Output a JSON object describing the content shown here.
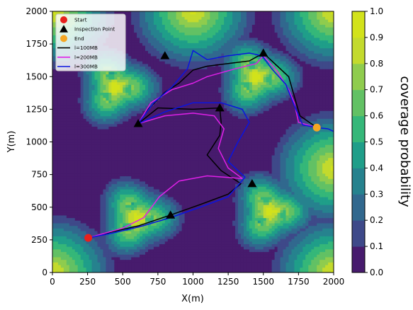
{
  "chart_data": {
    "type": "line",
    "xlabel": "X(m)",
    "ylabel": "Y(m)",
    "xlim": [
      0,
      2000
    ],
    "ylim": [
      0,
      2000
    ],
    "xticks": [
      0,
      250,
      500,
      750,
      1000,
      1250,
      1500,
      1750,
      2000
    ],
    "yticks": [
      0,
      250,
      500,
      750,
      1000,
      1250,
      1500,
      1750,
      2000
    ],
    "grid": false,
    "legend_position": "top-left",
    "background": "filled contour map of coverage probability",
    "colorbar": {
      "label": "coverage probability",
      "levels": [
        0.0,
        0.1,
        0.2,
        0.3,
        0.4,
        0.5,
        0.6,
        0.7,
        0.8,
        0.9,
        1.0
      ],
      "tick_labels": [
        "0.0",
        "0.1",
        "0.2",
        "0.3",
        "0.4",
        "0.5",
        "0.6",
        "0.7",
        "0.8",
        "0.9",
        "1.0"
      ],
      "colors": [
        "#471b6d",
        "#3e4989",
        "#31688e",
        "#26828e",
        "#1f9e89",
        "#35b779",
        "#62c164",
        "#8fcc4e",
        "#c3da2d",
        "#d2e21b"
      ]
    },
    "cells": [
      {
        "x": 450,
        "y": 1420
      },
      {
        "x": 1450,
        "y": 1500
      },
      {
        "x": 600,
        "y": 420
      },
      {
        "x": 1550,
        "y": 470
      }
    ],
    "markers": [
      {
        "name": "Start",
        "shape": "circle",
        "color": "#e8201c",
        "points": [
          [
            255,
            265
          ]
        ]
      },
      {
        "name": "Inspection Point",
        "shape": "triangle",
        "color": "#000000",
        "points": [
          [
            610,
            1140
          ],
          [
            800,
            1660
          ],
          [
            1190,
            1260
          ],
          [
            1500,
            1680
          ],
          [
            1420,
            680
          ],
          [
            840,
            440
          ]
        ]
      },
      {
        "name": "End",
        "shape": "circle",
        "color": "#f5a623",
        "points": [
          [
            1880,
            1110
          ]
        ]
      }
    ],
    "series": [
      {
        "name": "l=100MB",
        "color": "#000000",
        "points": [
          [
            255,
            265
          ],
          [
            420,
            310
          ],
          [
            620,
            360
          ],
          [
            840,
            440
          ],
          [
            1050,
            520
          ],
          [
            1250,
            600
          ],
          [
            1340,
            680
          ],
          [
            1200,
            780
          ],
          [
            1100,
            900
          ],
          [
            1190,
            1050
          ],
          [
            1200,
            1150
          ],
          [
            1190,
            1260
          ],
          [
            1000,
            1250
          ],
          [
            750,
            1260
          ],
          [
            610,
            1140
          ],
          [
            680,
            1250
          ],
          [
            800,
            1380
          ],
          [
            900,
            1450
          ],
          [
            1000,
            1550
          ],
          [
            1100,
            1580
          ],
          [
            1250,
            1600
          ],
          [
            1400,
            1620
          ],
          [
            1500,
            1680
          ],
          [
            1560,
            1620
          ],
          [
            1680,
            1500
          ],
          [
            1720,
            1350
          ],
          [
            1760,
            1200
          ],
          [
            1880,
            1110
          ]
        ]
      },
      {
        "name": "l=200MB",
        "color": "#e020e8",
        "points": [
          [
            255,
            265
          ],
          [
            500,
            340
          ],
          [
            650,
            420
          ],
          [
            760,
            580
          ],
          [
            900,
            700
          ],
          [
            1100,
            740
          ],
          [
            1350,
            720
          ],
          [
            1250,
            800
          ],
          [
            1180,
            950
          ],
          [
            1220,
            1100
          ],
          [
            1150,
            1200
          ],
          [
            1000,
            1220
          ],
          [
            800,
            1200
          ],
          [
            610,
            1140
          ],
          [
            700,
            1300
          ],
          [
            850,
            1400
          ],
          [
            1000,
            1450
          ],
          [
            1100,
            1500
          ],
          [
            1300,
            1560
          ],
          [
            1450,
            1600
          ],
          [
            1500,
            1660
          ],
          [
            1600,
            1540
          ],
          [
            1680,
            1400
          ],
          [
            1720,
            1300
          ],
          [
            1750,
            1150
          ],
          [
            1880,
            1110
          ]
        ]
      },
      {
        "name": "l=300MB",
        "color": "#0a14e0",
        "points": [
          [
            255,
            265
          ],
          [
            420,
            300
          ],
          [
            620,
            350
          ],
          [
            840,
            420
          ],
          [
            1050,
            500
          ],
          [
            1250,
            580
          ],
          [
            1330,
            680
          ],
          [
            1370,
            730
          ],
          [
            1250,
            850
          ],
          [
            1320,
            1000
          ],
          [
            1400,
            1150
          ],
          [
            1350,
            1250
          ],
          [
            1200,
            1300
          ],
          [
            1000,
            1300
          ],
          [
            800,
            1230
          ],
          [
            610,
            1140
          ],
          [
            720,
            1300
          ],
          [
            850,
            1420
          ],
          [
            960,
            1560
          ],
          [
            1000,
            1700
          ],
          [
            1100,
            1630
          ],
          [
            1250,
            1660
          ],
          [
            1400,
            1680
          ],
          [
            1490,
            1660
          ],
          [
            1560,
            1560
          ],
          [
            1660,
            1440
          ],
          [
            1720,
            1280
          ],
          [
            1780,
            1130
          ],
          [
            1880,
            1110
          ],
          [
            1960,
            1100
          ],
          [
            2000,
            1080
          ]
        ]
      }
    ]
  }
}
